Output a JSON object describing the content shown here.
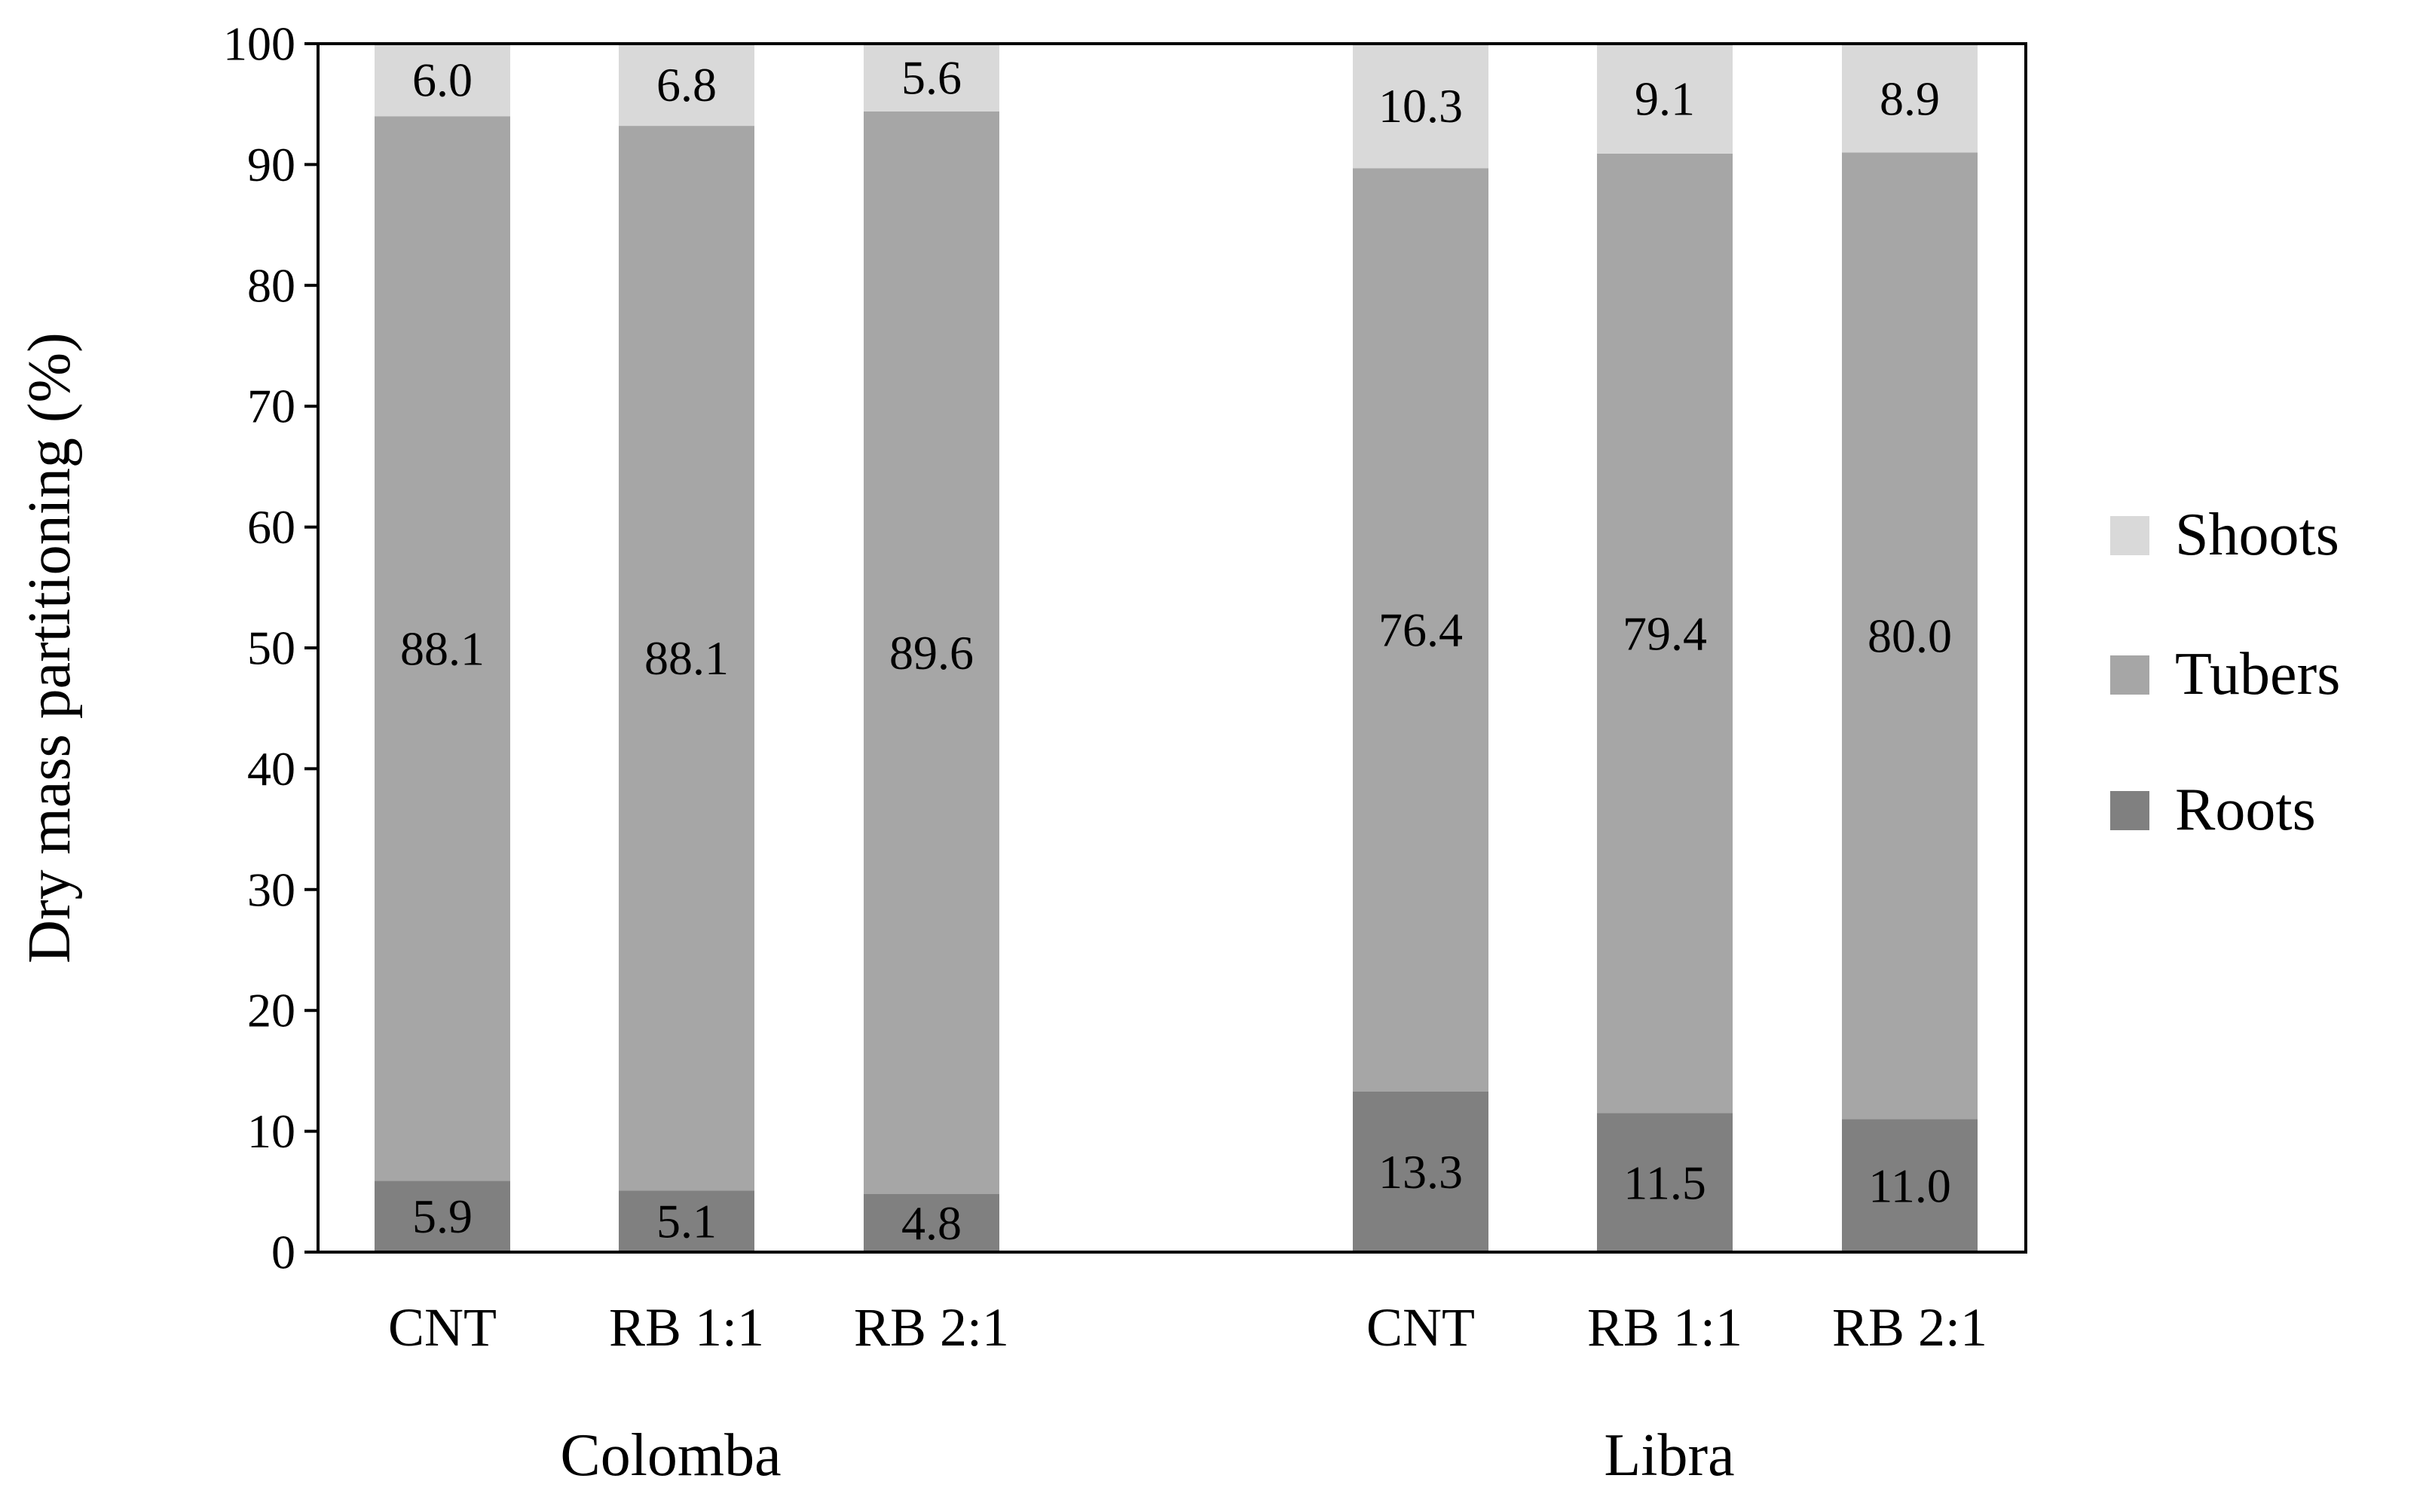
{
  "chart_data": {
    "type": "bar",
    "stacked": true,
    "ylabel": "Dry mass partitioning (%)",
    "ylim": [
      0,
      100
    ],
    "yticks": [
      0,
      10,
      20,
      30,
      40,
      50,
      60,
      70,
      80,
      90,
      100
    ],
    "grid": false,
    "legend_position": "right",
    "groups": [
      {
        "name": "Colomba",
        "categories": [
          "CNT",
          "RB 1:1",
          "RB 2:1"
        ],
        "series": [
          {
            "name": "Roots",
            "values": [
              5.9,
              5.1,
              4.8
            ],
            "labels": [
              "5.9",
              "5.1",
              "4.8"
            ]
          },
          {
            "name": "Tubers",
            "values": [
              88.1,
              88.1,
              89.6
            ],
            "labels": [
              "88.1",
              "88.1",
              "89.6"
            ]
          },
          {
            "name": "Shoots",
            "values": [
              6.0,
              6.8,
              5.6
            ],
            "labels": [
              "6.0",
              "6.8",
              "5.6"
            ]
          }
        ]
      },
      {
        "name": "Libra",
        "categories": [
          "CNT",
          "RB 1:1",
          "RB 2:1"
        ],
        "series": [
          {
            "name": "Roots",
            "values": [
              13.3,
              11.5,
              11.0
            ],
            "labels": [
              "13.3",
              "11.5",
              "11.0"
            ]
          },
          {
            "name": "Tubers",
            "values": [
              76.4,
              79.4,
              80.0
            ],
            "labels": [
              "76.4",
              "79.4",
              "80.0"
            ]
          },
          {
            "name": "Shoots",
            "values": [
              10.3,
              9.1,
              8.9
            ],
            "labels": [
              "10.3",
              "9.1",
              "8.9"
            ]
          }
        ]
      }
    ],
    "legend": [
      {
        "name": "Shoots",
        "color": "#d9d9d9"
      },
      {
        "name": "Tubers",
        "color": "#a6a6a6"
      },
      {
        "name": "Roots",
        "color": "#808080"
      }
    ]
  }
}
